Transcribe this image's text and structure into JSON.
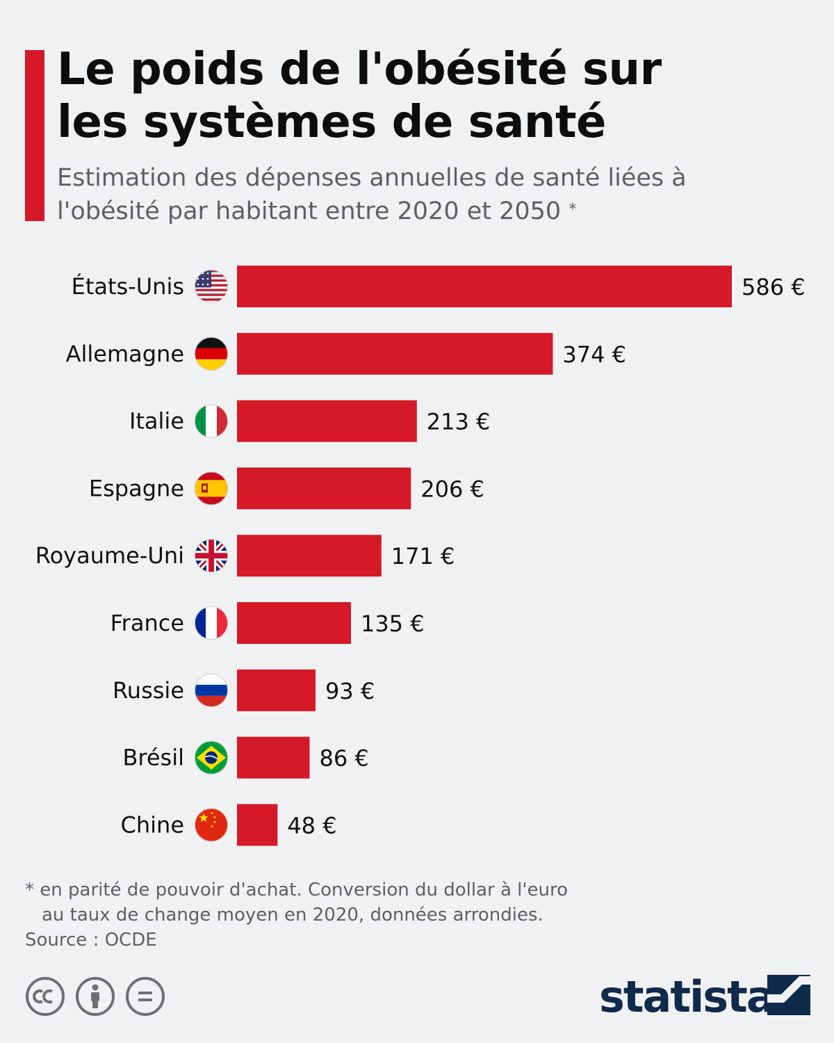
{
  "title_lines": [
    "Le poids de l'obésité sur",
    "les systèmes de santé"
  ],
  "subtitle_lines": [
    "Estimation des dépenses annuelles de santé liées à",
    "l'obésité par habitant entre 2020 et 2050"
  ],
  "subtitle_mark": "*",
  "chart_data": {
    "type": "bar",
    "orientation": "horizontal",
    "categories": [
      "États-Unis",
      "Allemagne",
      "Italie",
      "Espagne",
      "Royaume-Uni",
      "France",
      "Russie",
      "Brésil",
      "Chine"
    ],
    "values": [
      586,
      374,
      213,
      206,
      171,
      135,
      93,
      86,
      48
    ],
    "value_labels": [
      "586 €",
      "374 €",
      "213 €",
      "206 €",
      "171 €",
      "135 €",
      "93 €",
      "86 €",
      "48 €"
    ],
    "flags": [
      "usa-flag-icon",
      "germany-flag-icon",
      "italy-flag-icon",
      "spain-flag-icon",
      "uk-flag-icon",
      "france-flag-icon",
      "russia-flag-icon",
      "brazil-flag-icon",
      "china-flag-icon"
    ],
    "unit": "€",
    "xlim": [
      0,
      586
    ],
    "bar_color": "#d51928",
    "grid": false
  },
  "footnote_lines": [
    "* en parité de pouvoir d'achat. Conversion du dollar à l'euro",
    "au taux de change moyen en 2020, données arrondies."
  ],
  "source": "Source : OCDE",
  "license_icons": [
    "cc-icon",
    "attribution-icon",
    "no-derivatives-icon"
  ],
  "brand": "statista",
  "colors": {
    "accent": "#d51928",
    "background": "#f0f1f3",
    "brand": "#0f2a4a"
  }
}
